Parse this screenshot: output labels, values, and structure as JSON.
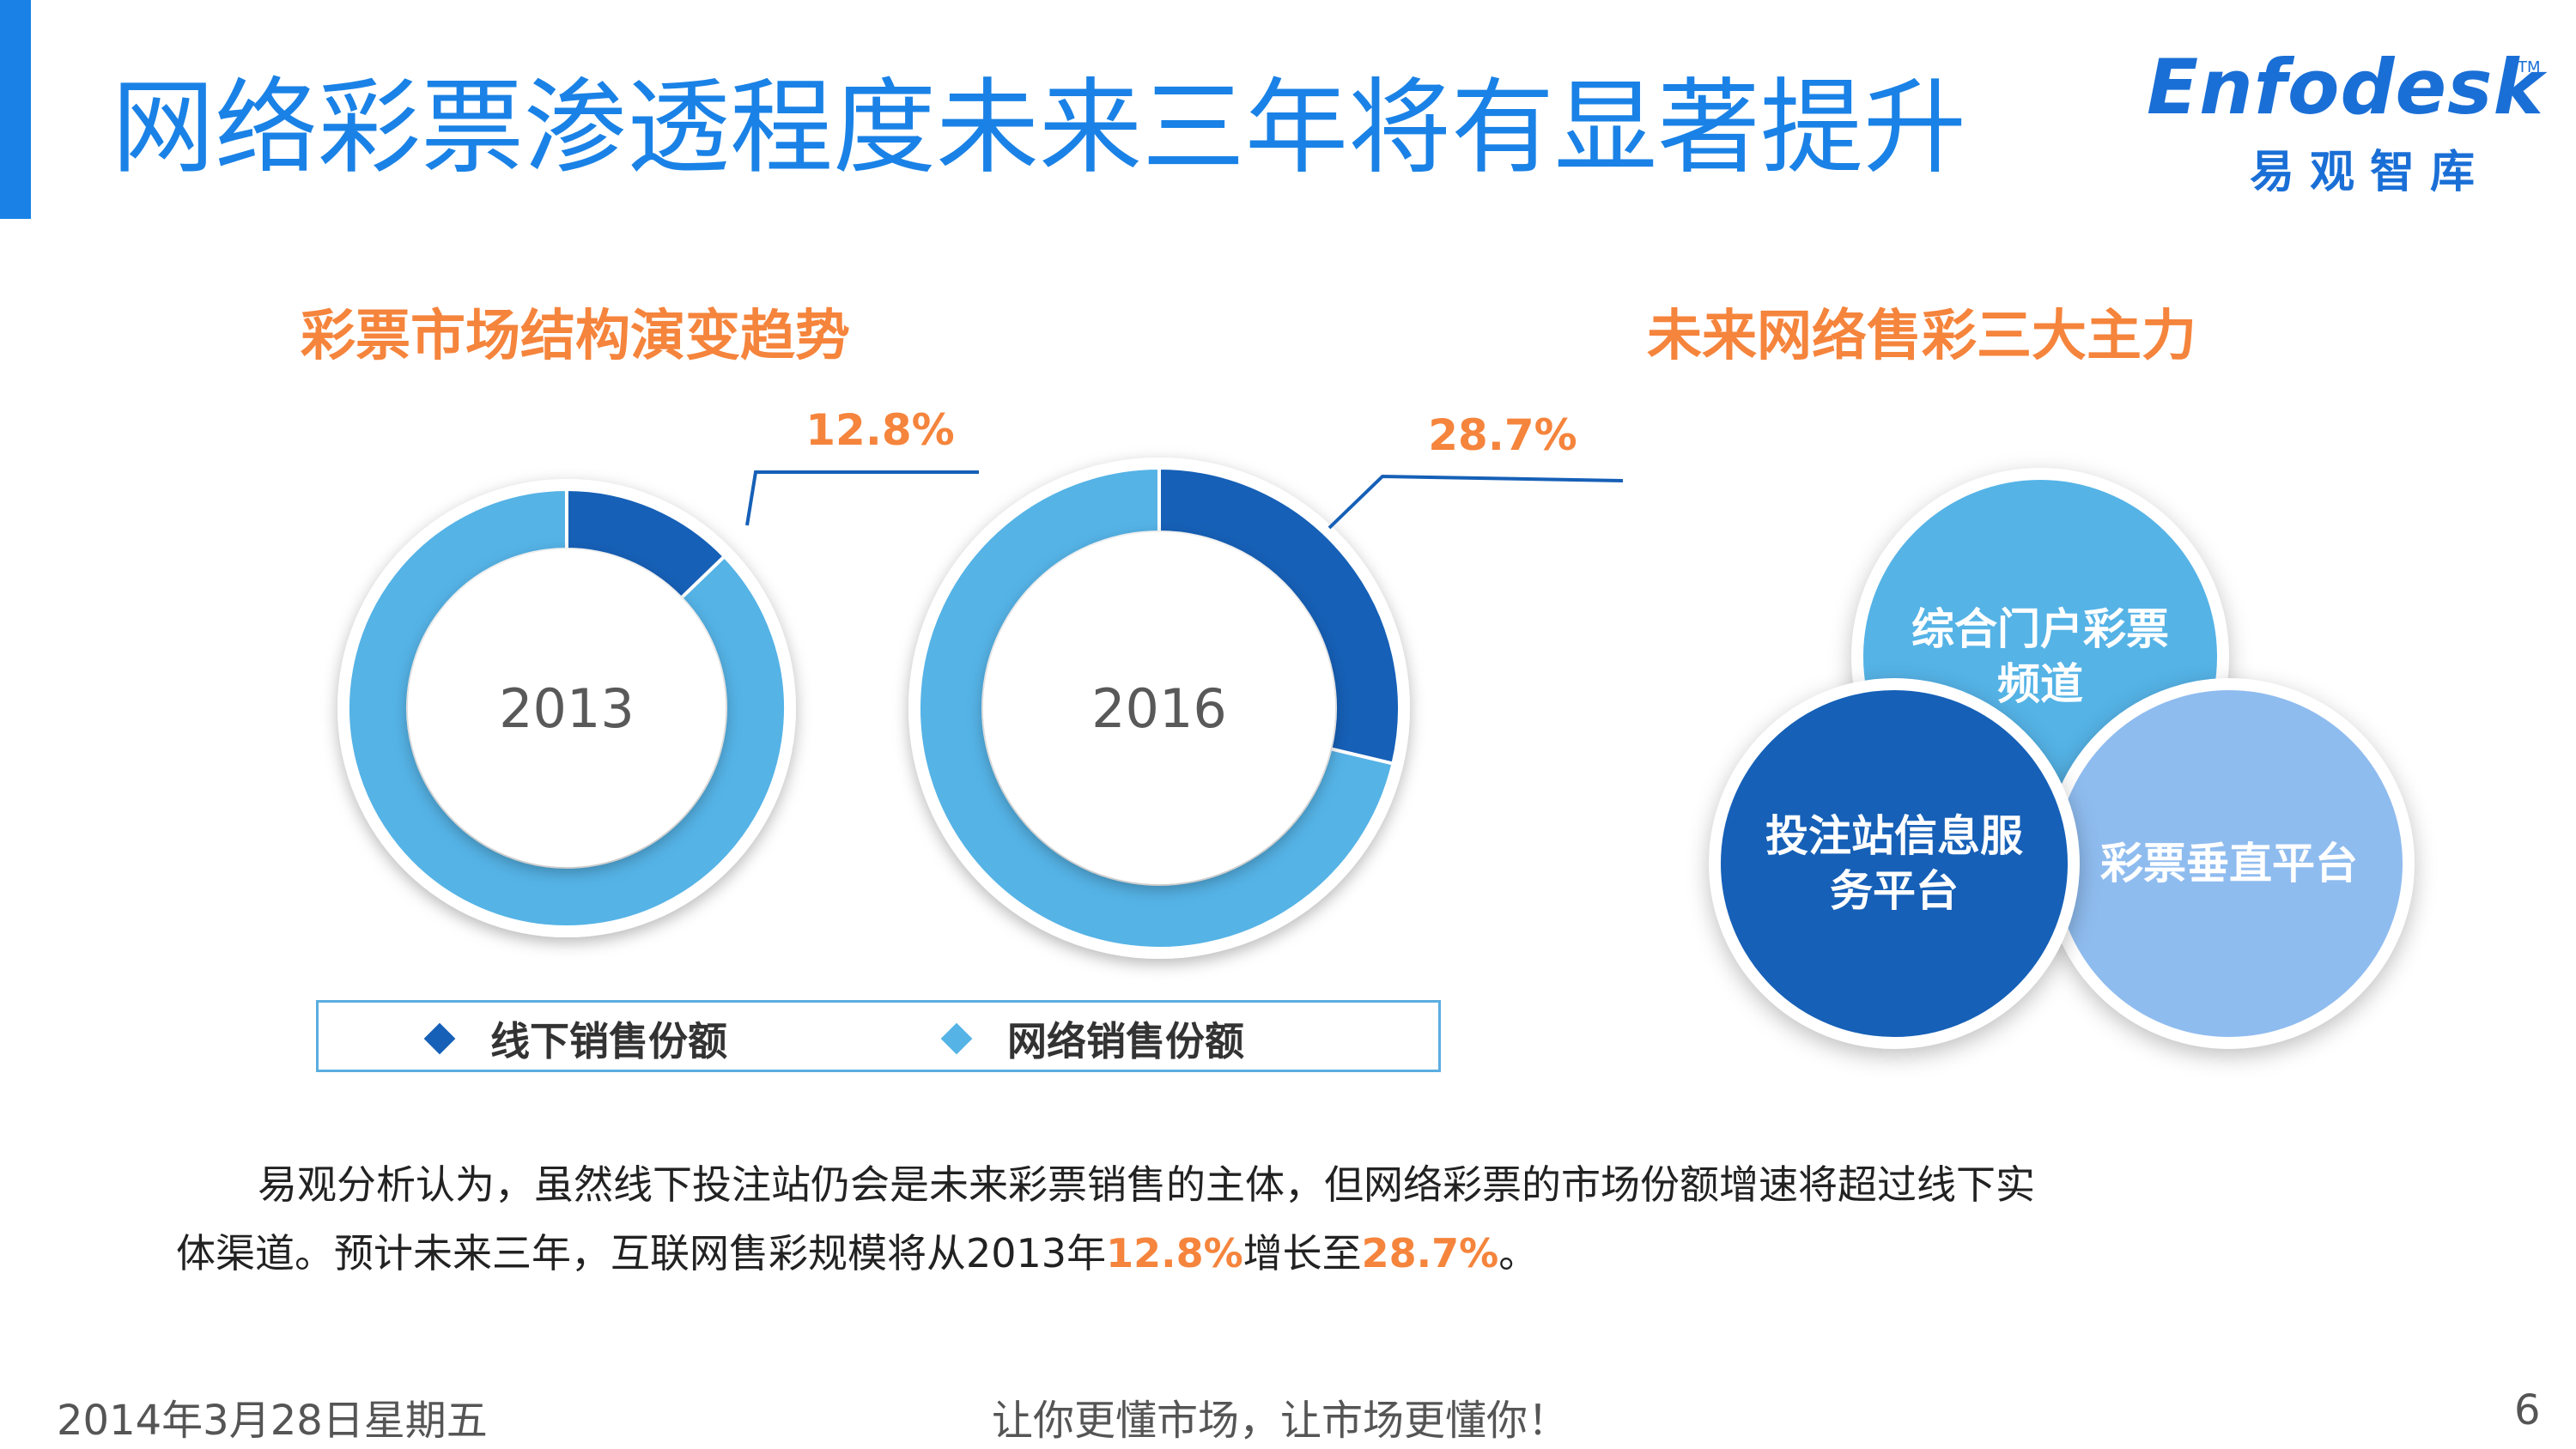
{
  "slide": {
    "title": "网络彩票渗透程度未来三年将有显著提升",
    "logo": {
      "wordmark": "Enfodesk",
      "tm": "TM",
      "chinese": "易观智库"
    },
    "left_heading": "彩票市场结构演变趋势",
    "right_heading": "未来网络售彩三大主力",
    "bubbles": {
      "portal": "综合门户彩票频道",
      "station": "投注站信息服务平台",
      "vertical": "彩票垂直平台"
    },
    "analysis": {
      "line1": "易观分析认为，虽然线下投注站仍会是未来彩票销售的主体，但网络彩票的市场份额增速将超过线下实",
      "line2_pre": "体渠道。预计未来三年，互联网售彩规模将从2013年",
      "value_2013": "12.8%",
      "line2_mid": "增长至",
      "value_2016": "28.7%",
      "line2_end": "。"
    },
    "footer": {
      "date": "2014年3月28日星期五",
      "slogan": "让你更懂市场，让市场更懂你！",
      "page": "6"
    }
  },
  "colors": {
    "title": "#1a82e6",
    "heading": "#f5843c",
    "offline": "#1660b7",
    "online": "#55b3e6",
    "vertical": "#8fbcef"
  },
  "chart_data": [
    {
      "type": "pie",
      "subtype": "donut",
      "center_label": "2013",
      "series": [
        {
          "name": "线下销售份额",
          "value": 87.2
        },
        {
          "name": "网络销售份额",
          "value": 12.8
        }
      ],
      "callout": {
        "label": "12.8%",
        "target": "网络销售份额"
      }
    },
    {
      "type": "pie",
      "subtype": "donut",
      "center_label": "2016",
      "series": [
        {
          "name": "线下销售份额",
          "value": 71.3
        },
        {
          "name": "网络销售份额",
          "value": 28.7
        }
      ],
      "callout": {
        "label": "28.7%",
        "target": "网络销售份额"
      }
    }
  ],
  "legend": [
    {
      "name": "线下销售份额",
      "color": "#1660b7"
    },
    {
      "name": "网络销售份额",
      "color": "#55b3e6"
    }
  ]
}
